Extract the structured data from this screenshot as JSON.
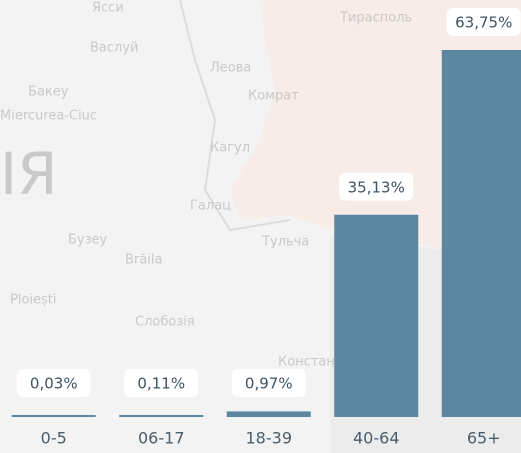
{
  "chart_data": {
    "type": "bar",
    "categories": [
      "0-5",
      "06-17",
      "18-39",
      "40-64",
      "65+"
    ],
    "values": [
      0.03,
      0.11,
      0.97,
      35.13,
      63.75
    ],
    "value_labels": [
      "0,03%",
      "0,11%",
      "0,97%",
      "35,13%",
      "63,75%"
    ],
    "color": "#5b87a0",
    "ylim": [
      0,
      70
    ]
  },
  "map_labels": [
    "Ясси",
    "Васлуй",
    "Бакеу",
    "Miercurea-Ciuc",
    "Леова",
    "Комрат",
    "Тирасполь",
    "Кагул",
    "Галац",
    "Бузеу",
    "Brăila",
    "Тульча",
    "Ploiești",
    "Слобозія",
    "Констанц",
    "ІЯ"
  ]
}
